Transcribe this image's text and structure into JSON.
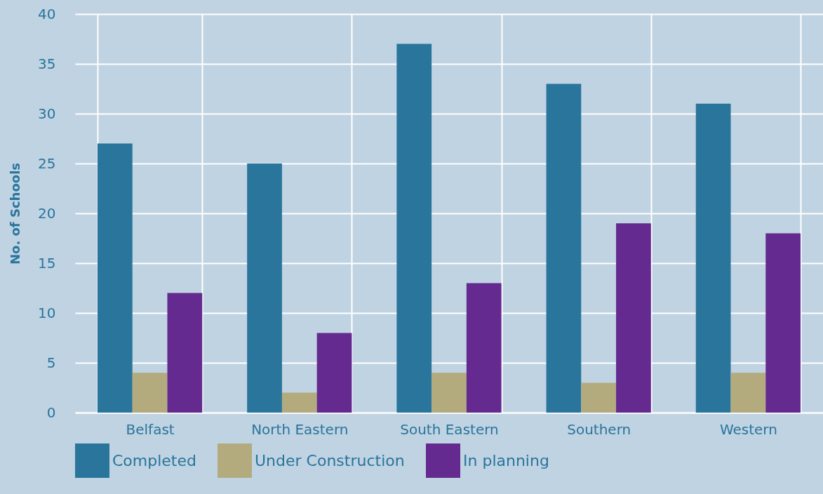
{
  "chart_data": {
    "type": "bar",
    "ylabel": "No. of Schools",
    "categories": [
      "Belfast",
      "North Eastern",
      "South Eastern",
      "Southern",
      "Western"
    ],
    "series": [
      {
        "name": "Completed",
        "color": "#29759c",
        "values": [
          27,
          25,
          37,
          33,
          31
        ]
      },
      {
        "name": "Under Construction",
        "color": "#b3ab7e",
        "values": [
          4,
          2,
          4,
          3,
          4
        ]
      },
      {
        "name": "In planning",
        "color": "#642a8f",
        "values": [
          12,
          8,
          13,
          19,
          18
        ]
      }
    ],
    "ylim": [
      0,
      40
    ],
    "yticks": [
      0,
      5,
      10,
      15,
      20,
      25,
      30,
      35,
      40
    ],
    "grid": true,
    "legend": "bottom"
  }
}
